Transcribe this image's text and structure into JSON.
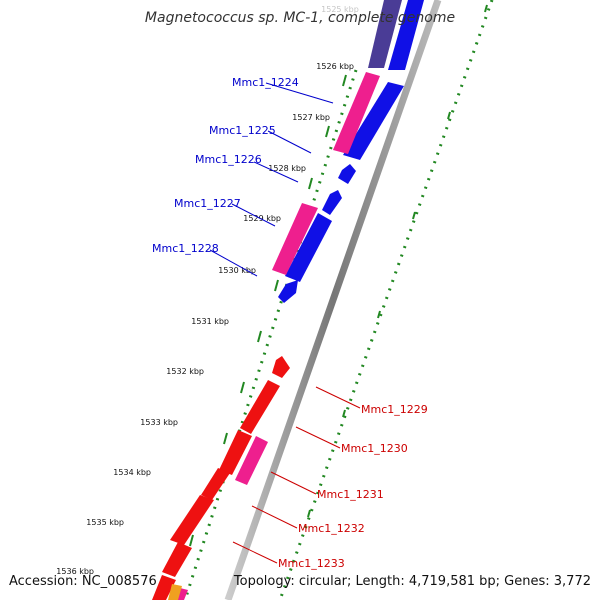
{
  "title": "Magnetococcus sp. MC-1, complete genome",
  "footer": {
    "accession": "Accession: NC_008576",
    "info": "Topology: circular; Length: 4,719,581 bp; Genes: 3,772"
  },
  "colors": {
    "forward_cds": "#1010e6",
    "reverse_cds": "#ee1111",
    "pink_feature": "#ee1f8e",
    "upper_label": "#0000cc",
    "lower_label": "#cc0000",
    "ruler_green": "#228822",
    "backbone": "#888888"
  },
  "ruler_ticks": [
    "1526 kbp",
    "1527 kbp",
    "1528 kbp",
    "1529 kbp",
    "1530 kbp",
    "1531 kbp",
    "1532 kbp",
    "1533 kbp",
    "1534 kbp",
    "1535 kbp",
    "1536 kbp"
  ],
  "top_faded_tick": "1525 kbp",
  "upper_labels": [
    "Mmc1_1224",
    "Mmc1_1225",
    "Mmc1_1226",
    "Mmc1_1227",
    "Mmc1_1228"
  ],
  "lower_labels": [
    "Mmc1_1229",
    "Mmc1_1230",
    "Mmc1_1231",
    "Mmc1_1232",
    "Mmc1_1233"
  ]
}
